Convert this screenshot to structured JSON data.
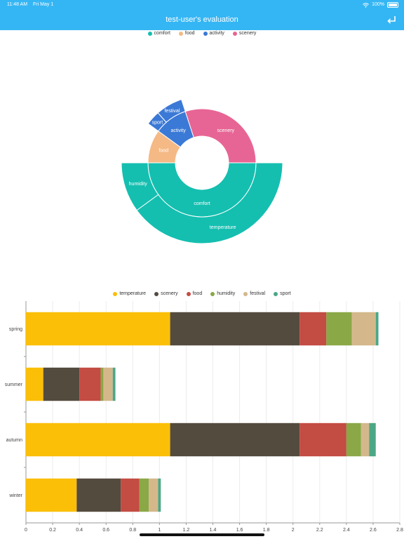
{
  "status": {
    "time": "11:48 AM",
    "date": "Fri May 1",
    "battery": "100%"
  },
  "header": {
    "title": "test-user's evaluation"
  },
  "sunburst": {
    "legend": [
      {
        "name": "comfort",
        "color": "#14bfb0"
      },
      {
        "name": "food",
        "color": "#f5b985"
      },
      {
        "name": "activity",
        "color": "#3b79d6"
      },
      {
        "name": "scenery",
        "color": "#e76594"
      }
    ],
    "inner": [
      {
        "name": "comfort",
        "value": 50,
        "color": "#14bfb0"
      },
      {
        "name": "food",
        "value": 10,
        "color": "#f5b985"
      },
      {
        "name": "activity",
        "value": 10,
        "color": "#3b79d6"
      },
      {
        "name": "scenery",
        "value": 30,
        "color": "#e76594"
      }
    ],
    "outer": [
      {
        "name": "temperature",
        "parent": "comfort",
        "value": 40,
        "color": "#14bfb0"
      },
      {
        "name": "humidity",
        "parent": "comfort",
        "value": 10,
        "color": "#14bfb0"
      },
      {
        "name": "sport",
        "parent": "activity",
        "value": 3.5,
        "color": "#3b79d6"
      },
      {
        "name": "festival",
        "parent": "activity",
        "value": 6.5,
        "color": "#3b79d6"
      }
    ]
  },
  "chart_data": {
    "type": "bar",
    "orientation": "horizontal",
    "stacked": true,
    "categories": [
      "spring",
      "summer",
      "autumn",
      "winter"
    ],
    "series": [
      {
        "name": "temperature",
        "color": "#fbbf08",
        "values": [
          1.08,
          0.13,
          1.08,
          0.38
        ]
      },
      {
        "name": "scenery",
        "color": "#544b3f",
        "values": [
          0.97,
          0.27,
          0.97,
          0.33
        ]
      },
      {
        "name": "food",
        "color": "#c34c43",
        "values": [
          0.2,
          0.16,
          0.35,
          0.14
        ]
      },
      {
        "name": "humidity",
        "color": "#8ba847",
        "values": [
          0.19,
          0.02,
          0.11,
          0.07
        ]
      },
      {
        "name": "festival",
        "color": "#d4b88b",
        "values": [
          0.18,
          0.07,
          0.06,
          0.07
        ]
      },
      {
        "name": "sport",
        "color": "#4ba886",
        "values": [
          0.02,
          0.02,
          0.05,
          0.02
        ]
      }
    ],
    "xlim": [
      0,
      2.8
    ],
    "xticks": [
      "0",
      "0.2",
      "0.4",
      "0.6",
      "0.8",
      "1",
      "1.2",
      "1.4",
      "1.6",
      "1.8",
      "2",
      "2.2",
      "2.4",
      "2.6",
      "2.8"
    ],
    "legend_position": "top-center",
    "grid": true
  }
}
